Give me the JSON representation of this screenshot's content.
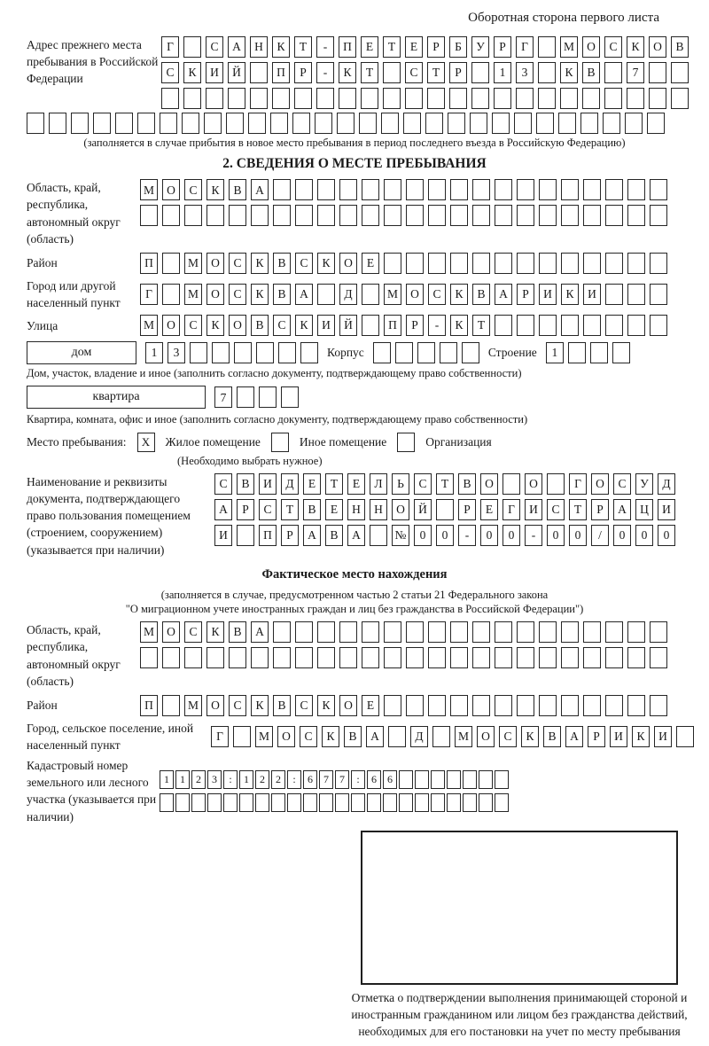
{
  "ui_colors": {
    "ink": "#1a1a1a",
    "background": "#ffffff",
    "box_border": "#262626"
  },
  "page": {
    "header_note": "Оборотная сторона первого листа"
  },
  "prev_address": {
    "label": "Адрес прежнего места пребывания в Российской Федерации",
    "rows": [
      "Г_САНКТ-ПЕТЕРБУРГ_МОСКОВ",
      "СКИЙ_ПР-КТ_СТР_13_КВ_7__",
      "________________________"
    ],
    "row_full": "_____________________________",
    "note": "(заполняется в случае прибытия в новое место пребывания в период последнего въезда в Российскую Федерацию)"
  },
  "section2": {
    "title": "2. СВЕДЕНИЯ О МЕСТЕ ПРЕБЫВАНИЯ",
    "oblast": {
      "label": "Область, край, республика, автономный округ (область)",
      "rows": [
        "МОСКВА__________________",
        "________________________"
      ]
    },
    "raion": {
      "label": "Район",
      "row": "П_МОСКВСКОЕ_____________"
    },
    "gorod": {
      "label": "Город или другой населенный пункт",
      "row": "Г_МОСКВА_Д_МОСКВАРИКИ___"
    },
    "ulitsa": {
      "label": "Улица",
      "row": "МОСКОВСКИЙ_ПР-КТ________"
    },
    "dom": {
      "box_label": "дом",
      "cells": "13______",
      "korpus_label": "Корпус",
      "korpus_cells": "_____",
      "stroenie_label": "Строение",
      "stroenie_cells": "1___",
      "note": "Дом, участок, владение и иное (заполнить согласно документу, подтверждающему право собственности)"
    },
    "kvartira": {
      "box_label": "квартира",
      "cells": "7___",
      "note": "Квартира, комната, офис и иное (заполнить согласно документу, подтверждающему право собственности)"
    },
    "mesto": {
      "label": "Место пребывания:",
      "options": [
        {
          "label": "Жилое помещение",
          "checked": "X"
        },
        {
          "label": "Иное помещение",
          "checked": ""
        },
        {
          "label": "Организация",
          "checked": ""
        }
      ],
      "note": "(Необходимо выбрать нужное)"
    },
    "document": {
      "label": "Наименование и реквизиты документа, подтверждающего право пользования помещением (строением, сооружением) (указывается при наличии)",
      "rows": [
        "СВИДЕТЕЛЬСТВО_О_ГОСУД",
        "АРСТВЕННОЙ_РЕГИСТРАЦИ",
        "И_ПРАВА_№00-00-00/000"
      ]
    }
  },
  "fact_location": {
    "title": "Фактическое место нахождения",
    "note_line1": "(заполняется в случае, предусмотренном частью 2 статьи 21 Федерального закона",
    "note_line2": "\"О миграционном учете иностранных граждан и лиц без гражданства в Российской Федерации\")",
    "oblast": {
      "label": "Область, край, республика, автономный округ (область)",
      "rows": [
        "МОСКВА__________________",
        "________________________"
      ]
    },
    "raion": {
      "label": "Район",
      "row": "П_МОСКВСКОЕ_____________"
    },
    "gorod": {
      "label": "Город, сельское поселение, иной населенный пункт",
      "row": "Г_МОСКВА_Д_МОСКВАРИКИ_"
    },
    "kadastr": {
      "label": "Кадастровый номер земельного или лесного участка (указывается при наличии)",
      "rows": [
        "1123:122:677:66_______",
        "______________________"
      ]
    },
    "stamp_note": "Отметка о подтверждении выполнения принимающей стороной и иностранным гражданином или лицом без гражданства действий, необходимых для его постановки на учет по месту пребывания"
  }
}
